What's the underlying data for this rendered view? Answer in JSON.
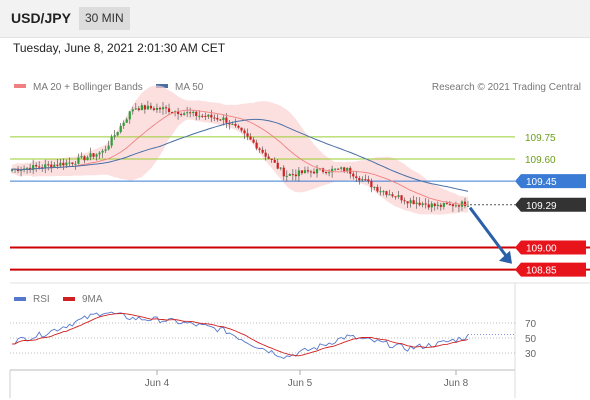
{
  "header": {
    "symbol": "USD/JPY",
    "interval": "30 MIN"
  },
  "timestamp": "Tuesday, June 8, 2021 2:01:30 AM CET",
  "legend": {
    "bb_label": "MA 20 + Bollinger Bands",
    "ma50_label": "MA 50",
    "research": "Research © 2021 Trading Central"
  },
  "colors": {
    "bb": "#f08080",
    "ma50": "#4a6fa5",
    "up": "#2e9e3a",
    "down": "#d02020",
    "resistance": "#9acd32",
    "pivot": "#3a7bd5",
    "support": "#cc0000",
    "price": "#333333"
  },
  "chart_data": {
    "type": "candlestick",
    "ylim": [
      108.78,
      110.0
    ],
    "x_ticks": [
      "Jun 4",
      "Jun 5",
      "Jun 8"
    ],
    "levels": [
      {
        "value": 109.75,
        "label": "109.75",
        "kind": "resistance"
      },
      {
        "value": 109.6,
        "label": "109.60",
        "kind": "resistance"
      },
      {
        "value": 109.45,
        "label": "109.45",
        "kind": "pivot"
      },
      {
        "value": 109.29,
        "label": "109.29",
        "kind": "last_price"
      },
      {
        "value": 109.0,
        "label": "109.00",
        "kind": "support"
      },
      {
        "value": 108.85,
        "label": "108.85",
        "kind": "support"
      }
    ],
    "trend_arrow": {
      "from": 109.27,
      "to": 108.89,
      "direction": "down"
    },
    "close_anchors": [
      109.53,
      109.55,
      109.58,
      109.65,
      109.95,
      109.94,
      109.9,
      109.87,
      109.7,
      109.49,
      109.52,
      109.53,
      109.4,
      109.32,
      109.28,
      109.3
    ],
    "rsi": {
      "levels": [
        70,
        50,
        30
      ],
      "series_names": [
        "RSI",
        "9MA"
      ],
      "rsi_anchors": [
        45,
        55,
        70,
        85,
        76,
        74,
        68,
        60,
        40,
        25,
        37,
        52,
        45,
        36,
        42,
        52
      ]
    }
  }
}
